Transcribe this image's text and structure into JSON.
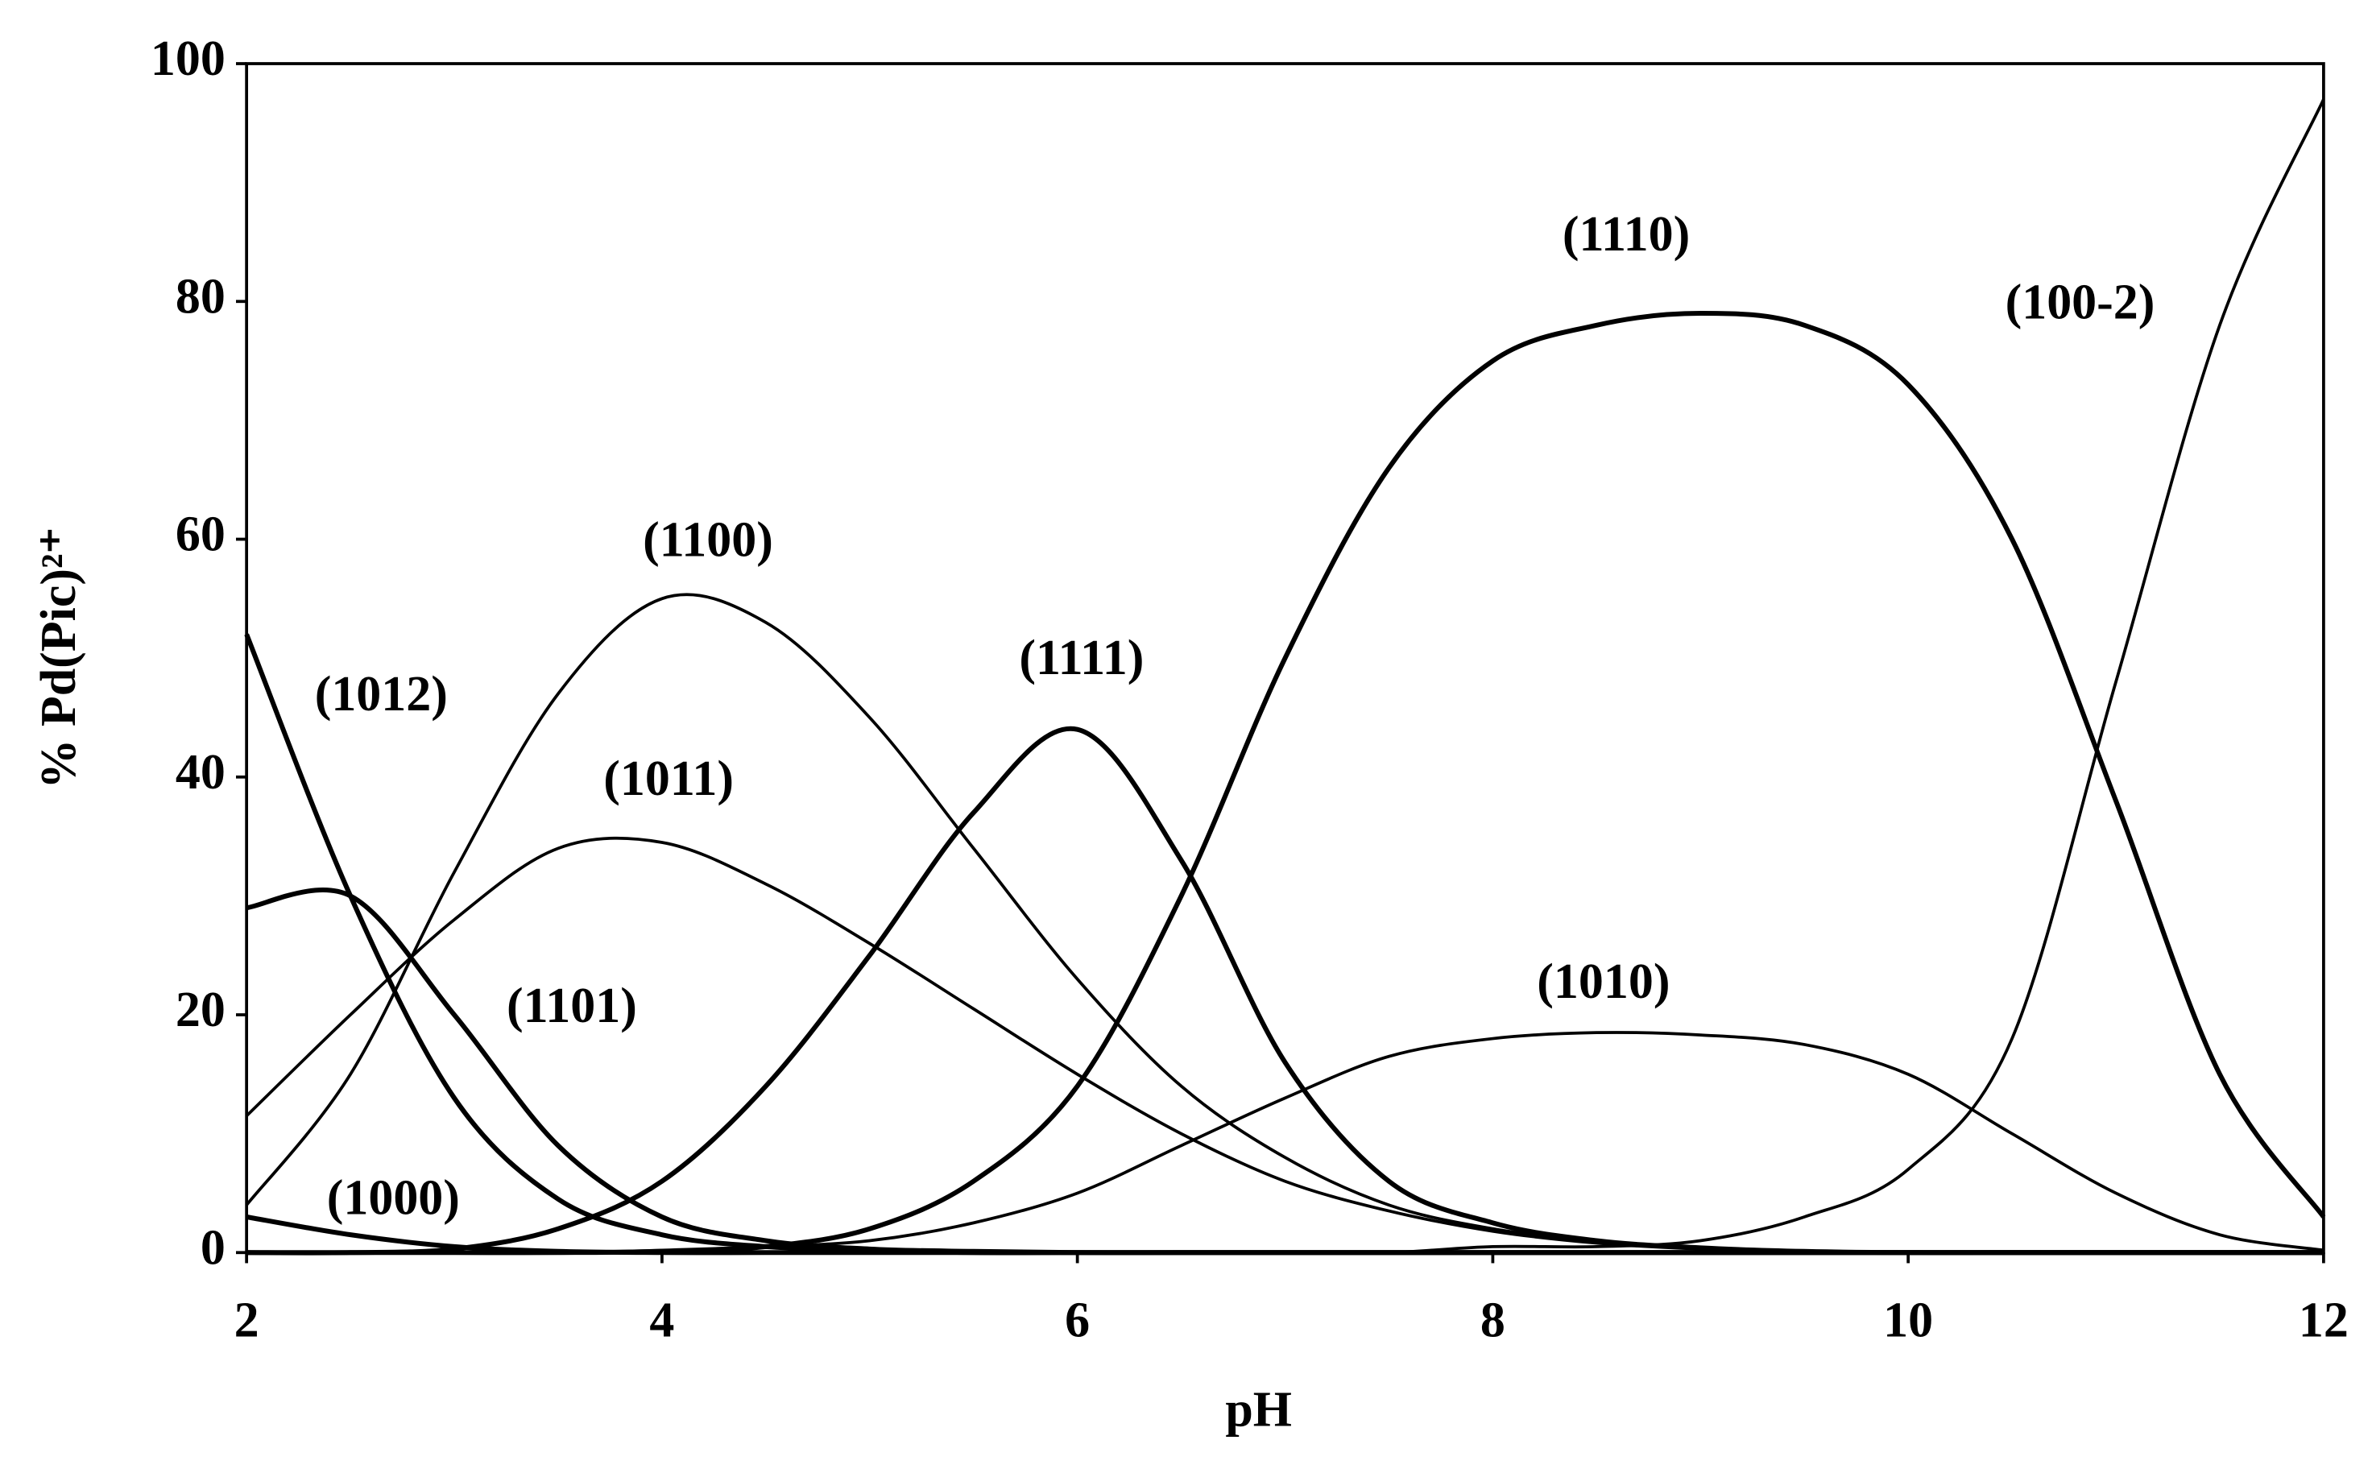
{
  "chart_data": {
    "type": "line",
    "xlabel": "pH",
    "ylabel": "% Pd(Pic)²⁺",
    "x": [
      2,
      2.5,
      3,
      3.5,
      4,
      4.5,
      5,
      5.5,
      6,
      6.5,
      7,
      7.5,
      8,
      8.5,
      9,
      9.5,
      10,
      10.5,
      11,
      11.5,
      12
    ],
    "xlim": [
      2,
      12
    ],
    "xticks": [
      2,
      4,
      6,
      8,
      10,
      12
    ],
    "ylim": [
      0,
      100
    ],
    "yticks": [
      0,
      20,
      40,
      60,
      80,
      100
    ],
    "grid": false,
    "color": "#000000",
    "series": [
      {
        "name": "(1012)",
        "values": [
          52,
          30,
          13,
          4.5,
          1.5,
          0.5,
          0.2,
          0,
          0,
          0,
          0,
          0,
          0,
          0,
          0,
          0,
          0,
          0,
          0,
          0,
          0
        ]
      },
      {
        "name": "(1101)",
        "values": [
          29,
          30,
          20,
          9,
          3,
          1,
          0.3,
          0.1,
          0,
          0,
          0,
          0,
          0,
          0,
          0,
          0,
          0,
          0,
          0,
          0,
          0
        ]
      },
      {
        "name": "(1000)",
        "values": [
          3,
          1.5,
          0.5,
          0.1,
          0,
          0,
          0,
          0,
          0,
          0,
          0,
          0,
          0,
          0,
          0,
          0,
          0,
          0,
          0,
          0,
          0
        ]
      },
      {
        "name": "(1100)",
        "values": [
          4,
          15,
          32,
          47,
          55,
          53,
          45,
          34,
          23,
          14,
          8,
          4,
          2,
          1,
          0.4,
          0.1,
          0,
          0,
          0,
          0,
          0
        ]
      },
      {
        "name": "(1011)",
        "values": [
          11.5,
          20,
          28,
          34,
          34.5,
          31,
          26,
          20.5,
          15,
          10,
          6,
          3.5,
          1.8,
          0.8,
          0.3,
          0.1,
          0,
          0,
          0,
          0,
          0
        ]
      },
      {
        "name": "(1111)",
        "values": [
          0,
          0,
          0.3,
          2,
          6,
          14,
          25,
          37,
          44,
          33,
          16,
          6,
          2.5,
          1,
          0.4,
          0.1,
          0,
          0,
          0,
          0,
          0
        ]
      },
      {
        "name": "(1110)",
        "values": [
          0,
          0,
          0,
          0,
          0.1,
          0.5,
          2,
          6,
          14,
          30,
          50,
          66,
          75,
          78,
          79,
          78,
          73,
          60,
          38,
          15,
          3
        ]
      },
      {
        "name": "(1010)",
        "values": [
          0,
          0,
          0,
          0,
          0.2,
          0.5,
          1,
          2.5,
          5,
          9,
          13,
          16.5,
          18,
          18.5,
          18.3,
          17.5,
          15,
          10,
          5,
          1.5,
          0.2
        ]
      },
      {
        "name": "(100-2)",
        "values": [
          0,
          0,
          0,
          0,
          0,
          0,
          0,
          0,
          0,
          0,
          0,
          0,
          0.5,
          0.5,
          1,
          3,
          7,
          18,
          48,
          78,
          97
        ]
      }
    ]
  }
}
